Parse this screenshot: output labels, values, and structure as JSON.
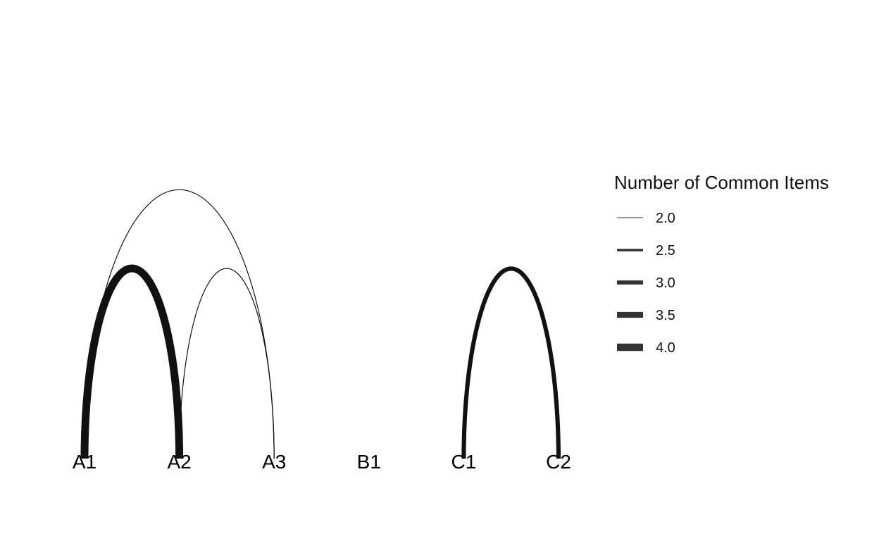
{
  "chart_data": {
    "type": "arc",
    "nodes": [
      "A1",
      "A2",
      "A3",
      "B1",
      "C1",
      "C2"
    ],
    "edges": [
      {
        "source": "A1",
        "target": "A2",
        "value": 4.0
      },
      {
        "source": "A1",
        "target": "A3",
        "value": 2.0
      },
      {
        "source": "A2",
        "target": "A3",
        "value": 2.0
      },
      {
        "source": "C1",
        "target": "C2",
        "value": 3.0
      }
    ],
    "legend": {
      "title": "Number of Common Items",
      "entries": [
        {
          "label": "2.0",
          "value": 2.0
        },
        {
          "label": "2.5",
          "value": 2.5
        },
        {
          "label": "3.0",
          "value": 3.0
        },
        {
          "label": "3.5",
          "value": 3.5
        },
        {
          "label": "4.0",
          "value": 4.0
        }
      ],
      "placement": "right"
    },
    "colors": {
      "arc": "#111111",
      "legend_key": "#333333",
      "label": "#000000"
    }
  }
}
